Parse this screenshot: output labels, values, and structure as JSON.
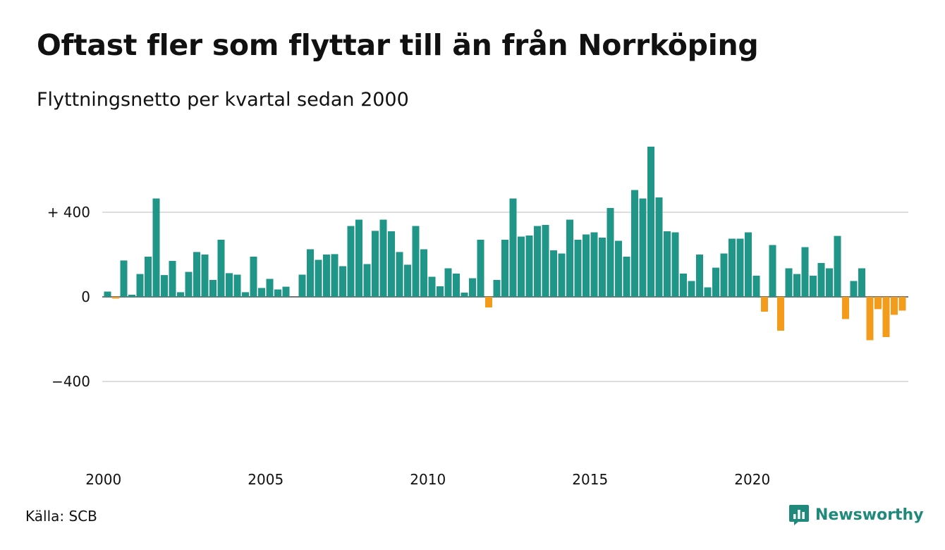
{
  "title": "Oftast fler som flyttar till än från Norrköping",
  "subtitle": "Flyttningsnetto per kvartal sedan 2000",
  "source": "Källa: SCB",
  "brand": "Newsworthy",
  "colors": {
    "positive": "#1f9687",
    "negative": "#f39c1c",
    "grid": "#dddddd",
    "brand": "#1f8a7b"
  },
  "chart_data": {
    "type": "bar",
    "ylim": [
      -700,
      700
    ],
    "yticks": [
      {
        "value": 400,
        "label": "+ 400"
      },
      {
        "value": 0,
        "label": "0"
      },
      {
        "value": -400,
        "label": "−400"
      }
    ],
    "xticks": [
      "2000",
      "2005",
      "2010",
      "2015",
      "2020"
    ],
    "start_year": 2000,
    "quarters_per_year": 4,
    "grid": true,
    "values": [
      25,
      -8,
      172,
      10,
      108,
      190,
      465,
      103,
      170,
      22,
      118,
      212,
      200,
      80,
      270,
      112,
      105,
      22,
      190,
      42,
      85,
      35,
      48,
      0,
      105,
      225,
      175,
      200,
      202,
      145,
      335,
      365,
      155,
      312,
      365,
      310,
      212,
      152,
      335,
      225,
      95,
      50,
      135,
      110,
      20,
      88,
      270,
      -50,
      80,
      270,
      465,
      285,
      290,
      335,
      340,
      220,
      205,
      365,
      270,
      295,
      305,
      280,
      420,
      265,
      190,
      505,
      465,
      710,
      470,
      310,
      305,
      110,
      75,
      200,
      45,
      138,
      205,
      275,
      275,
      305,
      100,
      -70,
      245,
      -160,
      135,
      108,
      235,
      100,
      160,
      135,
      288,
      -105,
      75,
      135,
      -205,
      -58,
      -190,
      -85,
      -65
    ]
  }
}
